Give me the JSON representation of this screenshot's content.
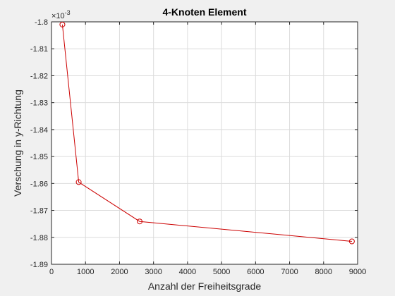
{
  "chart_data": {
    "type": "line",
    "title": "4-Knoten Element",
    "xlabel": "Anzahl der Freiheitsgrade",
    "ylabel": "Verschung in y-Richtung",
    "y_exponent_label": "×10",
    "y_exponent_power": "-3",
    "xlim": [
      0,
      9000
    ],
    "ylim": [
      -1.89,
      -1.8
    ],
    "x_ticks": [
      0,
      1000,
      2000,
      3000,
      4000,
      5000,
      6000,
      7000,
      8000,
      9000
    ],
    "x_tick_labels": [
      "0",
      "1000",
      "2000",
      "3000",
      "4000",
      "5000",
      "6000",
      "7000",
      "8000",
      "9000"
    ],
    "y_ticks": [
      -1.8,
      -1.81,
      -1.82,
      -1.83,
      -1.84,
      -1.85,
      -1.86,
      -1.87,
      -1.88,
      -1.89
    ],
    "y_tick_labels": [
      "-1.8",
      "-1.81",
      "-1.82",
      "-1.83",
      "-1.84",
      "-1.85",
      "-1.86",
      "-1.87",
      "-1.88",
      "-1.89"
    ],
    "grid": true,
    "series": [
      {
        "color": "#cc0000",
        "marker": "circle",
        "x": [
          320,
          800,
          2592,
          8832
        ],
        "y": [
          -1.801,
          -1.8595,
          -1.8741,
          -1.8815
        ]
      }
    ]
  }
}
